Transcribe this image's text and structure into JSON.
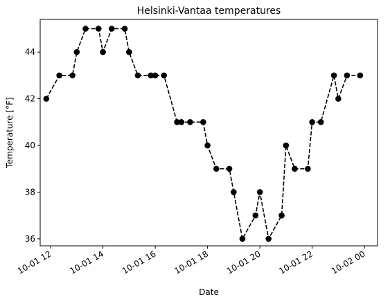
{
  "chart_data": {
    "type": "line",
    "title": "Helsinki-Vantaa temperatures",
    "xlabel": "Date",
    "ylabel": "Temperature [°F]",
    "xlim": [
      "2023-10-01T11:36",
      "2023-10-02T00:30"
    ],
    "ylim": [
      35.7,
      45.4
    ],
    "grid": false,
    "line_style": "dashed",
    "marker": "circle",
    "color": "#000000",
    "x_ticks": [
      {
        "value": "2023-10-01T12:00",
        "label": "10-01 12"
      },
      {
        "value": "2023-10-01T14:00",
        "label": "10-01 14"
      },
      {
        "value": "2023-10-01T16:00",
        "label": "10-01 16"
      },
      {
        "value": "2023-10-01T18:00",
        "label": "10-01 18"
      },
      {
        "value": "2023-10-01T20:00",
        "label": "10-01 20"
      },
      {
        "value": "2023-10-01T22:00",
        "label": "10-01 22"
      },
      {
        "value": "2023-10-02T00:00",
        "label": "10-02 00"
      }
    ],
    "y_ticks": [
      36,
      38,
      40,
      42,
      44
    ],
    "points": [
      {
        "x": "2023-10-01T11:50",
        "y": 42
      },
      {
        "x": "2023-10-01T12:20",
        "y": 43
      },
      {
        "x": "2023-10-01T12:50",
        "y": 43
      },
      {
        "x": "2023-10-01T13:00",
        "y": 44
      },
      {
        "x": "2023-10-01T13:20",
        "y": 45
      },
      {
        "x": "2023-10-01T13:50",
        "y": 45
      },
      {
        "x": "2023-10-01T14:00",
        "y": 44
      },
      {
        "x": "2023-10-01T14:20",
        "y": 45
      },
      {
        "x": "2023-10-01T14:50",
        "y": 45
      },
      {
        "x": "2023-10-01T15:00",
        "y": 44
      },
      {
        "x": "2023-10-01T15:20",
        "y": 43
      },
      {
        "x": "2023-10-01T15:50",
        "y": 43
      },
      {
        "x": "2023-10-01T16:00",
        "y": 43
      },
      {
        "x": "2023-10-01T16:20",
        "y": 43
      },
      {
        "x": "2023-10-01T16:50",
        "y": 41
      },
      {
        "x": "2023-10-01T17:00",
        "y": 41
      },
      {
        "x": "2023-10-01T17:20",
        "y": 41
      },
      {
        "x": "2023-10-01T17:50",
        "y": 41
      },
      {
        "x": "2023-10-01T18:00",
        "y": 40
      },
      {
        "x": "2023-10-01T18:20",
        "y": 39
      },
      {
        "x": "2023-10-01T18:50",
        "y": 39
      },
      {
        "x": "2023-10-01T19:00",
        "y": 38
      },
      {
        "x": "2023-10-01T19:20",
        "y": 36
      },
      {
        "x": "2023-10-01T19:50",
        "y": 37
      },
      {
        "x": "2023-10-01T20:00",
        "y": 38
      },
      {
        "x": "2023-10-01T20:20",
        "y": 36
      },
      {
        "x": "2023-10-01T20:50",
        "y": 37
      },
      {
        "x": "2023-10-01T21:00",
        "y": 40
      },
      {
        "x": "2023-10-01T21:20",
        "y": 39
      },
      {
        "x": "2023-10-01T21:50",
        "y": 39
      },
      {
        "x": "2023-10-01T22:00",
        "y": 41
      },
      {
        "x": "2023-10-01T22:20",
        "y": 41
      },
      {
        "x": "2023-10-01T22:50",
        "y": 43
      },
      {
        "x": "2023-10-01T23:00",
        "y": 42
      },
      {
        "x": "2023-10-01T23:20",
        "y": 43
      },
      {
        "x": "2023-10-01T23:50",
        "y": 43
      }
    ]
  }
}
